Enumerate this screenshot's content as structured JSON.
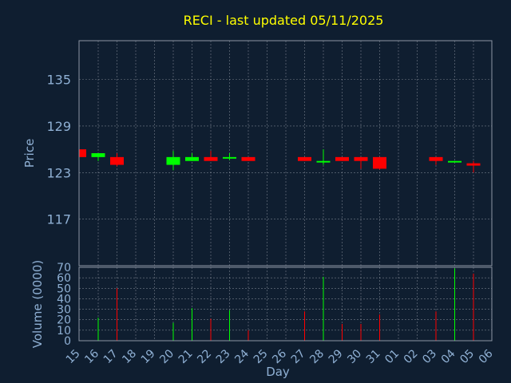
{
  "chart_data": [
    {
      "type": "candlestick",
      "title": "RECI - last updated 05/11/2025",
      "ylabel": "Price",
      "ylim": [
        111,
        140
      ],
      "yticks": [
        117,
        123,
        129,
        135
      ],
      "grid": true,
      "up_color": "#00ff00",
      "down_color": "#ff0000",
      "x": [
        "15",
        "16",
        "17",
        "18",
        "19",
        "20",
        "21",
        "22",
        "23",
        "24",
        "25",
        "26",
        "27",
        "28",
        "29",
        "30",
        "31",
        "01",
        "02",
        "03",
        "04",
        "05",
        "06"
      ],
      "candles": [
        {
          "day": "15",
          "open": 126.0,
          "close": 125.0,
          "high": 126.0,
          "low": 125.0
        },
        {
          "day": "16",
          "open": 125.0,
          "close": 125.5,
          "high": 125.5,
          "low": 124.5
        },
        {
          "day": "17",
          "open": 125.0,
          "close": 124.0,
          "high": 125.5,
          "low": 123.8
        },
        {
          "day": "20",
          "open": 124.0,
          "close": 125.0,
          "high": 125.8,
          "low": 123.3
        },
        {
          "day": "21",
          "open": 124.5,
          "close": 125.0,
          "high": 125.5,
          "low": 124.5
        },
        {
          "day": "22",
          "open": 125.0,
          "close": 124.5,
          "high": 125.8,
          "low": 124.5
        },
        {
          "day": "23",
          "open": 124.8,
          "close": 125.0,
          "high": 125.5,
          "low": 124.6
        },
        {
          "day": "24",
          "open": 125.0,
          "close": 124.5,
          "high": 125.0,
          "low": 124.5
        },
        {
          "day": "27",
          "open": 125.0,
          "close": 124.5,
          "high": 125.0,
          "low": 124.5
        },
        {
          "day": "28",
          "open": 124.3,
          "close": 124.5,
          "high": 126.0,
          "low": 124.0
        },
        {
          "day": "29",
          "open": 125.0,
          "close": 124.5,
          "high": 125.0,
          "low": 124.5
        },
        {
          "day": "30",
          "open": 125.0,
          "close": 124.5,
          "high": 125.0,
          "low": 123.5
        },
        {
          "day": "31",
          "open": 125.0,
          "close": 123.5,
          "high": 125.0,
          "low": 123.4
        },
        {
          "day": "03",
          "open": 125.0,
          "close": 124.5,
          "high": 125.0,
          "low": 124.0
        },
        {
          "day": "04",
          "open": 124.3,
          "close": 124.5,
          "high": 124.5,
          "low": 124.3
        },
        {
          "day": "05",
          "open": 124.2,
          "close": 123.9,
          "high": 124.5,
          "low": 123.0
        }
      ]
    },
    {
      "type": "bar",
      "ylabel": "Volume (0000)",
      "xlabel": "Day",
      "ylim": [
        0,
        70
      ],
      "yticks": [
        0,
        10,
        20,
        30,
        40,
        50,
        60,
        70
      ],
      "grid": true,
      "x": [
        "15",
        "16",
        "17",
        "18",
        "19",
        "20",
        "21",
        "22",
        "23",
        "24",
        "25",
        "26",
        "27",
        "28",
        "29",
        "30",
        "31",
        "01",
        "02",
        "03",
        "04",
        "05",
        "06"
      ],
      "bars": [
        {
          "day": "15",
          "value": 0,
          "direction": "down"
        },
        {
          "day": "16",
          "value": 22,
          "direction": "up"
        },
        {
          "day": "17",
          "value": 50,
          "direction": "down"
        },
        {
          "day": "20",
          "value": 17,
          "direction": "up"
        },
        {
          "day": "21",
          "value": 31,
          "direction": "up"
        },
        {
          "day": "22",
          "value": 21,
          "direction": "down"
        },
        {
          "day": "23",
          "value": 29,
          "direction": "up"
        },
        {
          "day": "24",
          "value": 10,
          "direction": "down"
        },
        {
          "day": "27",
          "value": 28,
          "direction": "down"
        },
        {
          "day": "28",
          "value": 61,
          "direction": "up"
        },
        {
          "day": "29",
          "value": 16,
          "direction": "down"
        },
        {
          "day": "30",
          "value": 16,
          "direction": "down"
        },
        {
          "day": "31",
          "value": 25,
          "direction": "down"
        },
        {
          "day": "03",
          "value": 28,
          "direction": "down"
        },
        {
          "day": "04",
          "value": 69,
          "direction": "up"
        },
        {
          "day": "05",
          "value": 64,
          "direction": "down"
        }
      ]
    }
  ]
}
